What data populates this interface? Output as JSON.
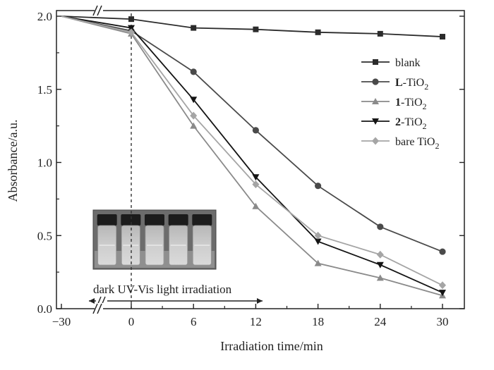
{
  "chart_data": {
    "type": "line",
    "title": "",
    "xlabel": "Irradiation time/min",
    "ylabel": "Absorbance/a.u.",
    "x_tick_labels": [
      "−30",
      "0",
      "6",
      "12",
      "18",
      "24",
      "30"
    ],
    "y_tick_labels": [
      "0.0",
      "0.5",
      "1.0",
      "1.5",
      "2.0"
    ],
    "ylim": [
      0,
      2.0
    ],
    "x_break_after": -30,
    "grid": false,
    "legend_position": "right",
    "series": [
      {
        "name": "blank",
        "name_bold": "",
        "name_sub": "",
        "color": "#2b2b2b",
        "marker": "square",
        "x": [
          -30,
          0,
          6,
          12,
          18,
          24,
          30
        ],
        "y": [
          2.0,
          1.98,
          1.92,
          1.91,
          1.89,
          1.88,
          1.86
        ]
      },
      {
        "name": "-TiO",
        "name_bold": "L",
        "name_sub": "2",
        "color": "#4a4a4a",
        "marker": "circle",
        "x": [
          -30,
          0,
          6,
          12,
          18,
          24,
          30
        ],
        "y": [
          2.0,
          1.9,
          1.62,
          1.22,
          0.84,
          0.56,
          0.39
        ]
      },
      {
        "name": "-TiO",
        "name_bold": "1",
        "name_sub": "2",
        "color": "#8a8a8a",
        "marker": "triangle-up",
        "x": [
          -30,
          0,
          6,
          12,
          18,
          24,
          30
        ],
        "y": [
          2.0,
          1.88,
          1.25,
          0.7,
          0.31,
          0.21,
          0.09
        ]
      },
      {
        "name": "-TiO",
        "name_bold": "2",
        "name_sub": "2",
        "color": "#141414",
        "marker": "triangle-down",
        "x": [
          -30,
          0,
          6,
          12,
          18,
          24,
          30
        ],
        "y": [
          2.0,
          1.92,
          1.43,
          0.9,
          0.46,
          0.3,
          0.11
        ]
      },
      {
        "name": "bare TiO",
        "name_bold": "",
        "name_sub": "2",
        "color": "#a5a5a5",
        "marker": "diamond",
        "x": [
          -30,
          0,
          6,
          12,
          18,
          24,
          30
        ],
        "y": [
          2.0,
          1.89,
          1.32,
          0.85,
          0.5,
          0.37,
          0.16
        ]
      }
    ],
    "annotation": {
      "text": "dark UV-Vis light irradiation",
      "dashed_line_x": 0
    },
    "inset": {
      "description_icon": "photo-of-five-vials-icon",
      "vial_count": 5
    }
  }
}
